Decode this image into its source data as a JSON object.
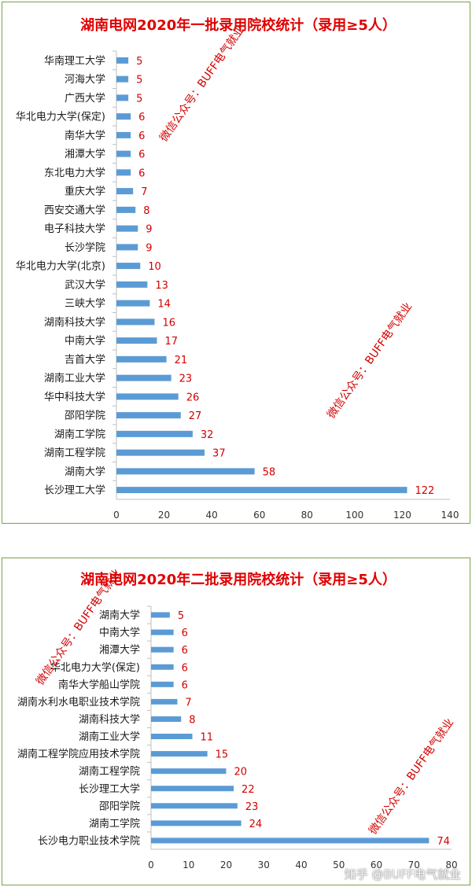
{
  "colors": {
    "bar": "#5b9bd5",
    "label": "#d40000",
    "title": "#e00000",
    "border": "#7aa245",
    "axis": "#bfbfbf"
  },
  "chart_data": [
    {
      "type": "bar",
      "orientation": "horizontal",
      "title": "湖南电网2020年一批录用院校统计（录用≥5人）",
      "categories": [
        "华南理工大学",
        "河海大学",
        "广西大学",
        "华北电力大学(保定)",
        "南华大学",
        "湘潭大学",
        "东北电力大学",
        "重庆大学",
        "西安交通大学",
        "电子科技大学",
        "长沙学院",
        "华北电力大学(北京)",
        "武汉大学",
        "三峡大学",
        "湖南科技大学",
        "中南大学",
        "吉首大学",
        "湖南工业大学",
        "华中科技大学",
        "邵阳学院",
        "湖南工学院",
        "湖南工程学院",
        "湖南大学",
        "长沙理工大学"
      ],
      "values": [
        5,
        5,
        5,
        6,
        6,
        6,
        6,
        7,
        8,
        9,
        9,
        10,
        13,
        14,
        16,
        17,
        21,
        23,
        26,
        27,
        32,
        37,
        58,
        122
      ],
      "xlim": [
        0,
        140
      ],
      "xticks": [
        "0",
        "20",
        "40",
        "60",
        "80",
        "100",
        "120",
        "140"
      ],
      "watermarks": [
        "微信公众号：BUFF电气就业",
        "微信公众号：BUFF电气就业"
      ]
    },
    {
      "type": "bar",
      "orientation": "horizontal",
      "title": "湖南电网2020年二批录用院校统计（录用≥5人）",
      "categories": [
        "湖南大学",
        "中南大学",
        "湘潭大学",
        "华北电力大学(保定)",
        "南华大学船山学院",
        "湖南水利水电职业技术学院",
        "湖南科技大学",
        "湖南工业大学",
        "湖南工程学院应用技术学院",
        "湖南工程学院",
        "长沙理工大学",
        "邵阳学院",
        "湖南工学院",
        "长沙电力职业技术学院"
      ],
      "values": [
        5,
        6,
        6,
        6,
        6,
        7,
        8,
        11,
        15,
        20,
        22,
        23,
        24,
        74
      ],
      "xlim": [
        0,
        80
      ],
      "xticks": [
        "0",
        "10",
        "20",
        "30",
        "40",
        "50",
        "60",
        "70",
        "80"
      ],
      "watermarks": [
        "微信公众号：BUFF电气就业",
        "微信公众号：BUFF电气就业"
      ]
    }
  ],
  "footer_watermark": "知乎 @BUFF电气就业"
}
